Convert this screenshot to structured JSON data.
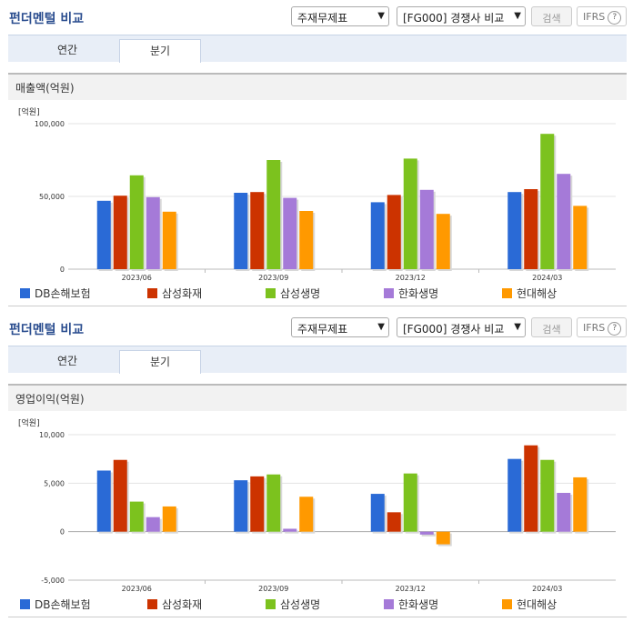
{
  "header": {
    "title": "펀더멘털 비교",
    "select_statement": "주재무제표",
    "select_compare": "[FG000] 경쟁사 비교",
    "search_label": "검색",
    "ifrs_label": "IFRS",
    "ifrs_help": "?"
  },
  "tabs": [
    {
      "label": "연간",
      "active": false
    },
    {
      "label": "분기",
      "active": true
    }
  ],
  "colors": {
    "DB손해보험": "#2a6ad6",
    "삼성화재": "#cc3300",
    "삼성생명": "#7cc21e",
    "한화생명": "#a57ad8",
    "현대해상": "#ff9900"
  },
  "chart_data": [
    {
      "type": "bar",
      "title": "매출액(억원)",
      "unit": "[억원]",
      "categories": [
        "2023/06",
        "2023/09",
        "2023/12",
        "2024/03"
      ],
      "ylim": [
        0,
        100000
      ],
      "yticks": [
        "100,000",
        "50,000",
        "0"
      ],
      "ytick_values": [
        100000,
        50000,
        0
      ],
      "series": [
        {
          "name": "DB손해보험",
          "values": [
            47000,
            52500,
            46000,
            53000
          ]
        },
        {
          "name": "삼성화재",
          "values": [
            50500,
            53000,
            51000,
            55000
          ]
        },
        {
          "name": "삼성생명",
          "values": [
            64500,
            75000,
            76000,
            93000
          ]
        },
        {
          "name": "한화생명",
          "values": [
            49500,
            49000,
            54500,
            65500
          ]
        },
        {
          "name": "현대해상",
          "values": [
            39500,
            40000,
            38000,
            43500
          ]
        }
      ]
    },
    {
      "type": "bar",
      "title": "영업이익(억원)",
      "unit": "[억원]",
      "categories": [
        "2023/06",
        "2023/09",
        "2023/12",
        "2024/03"
      ],
      "ylim": [
        -5000,
        10000
      ],
      "yticks": [
        "10,000",
        "5,000",
        "0",
        "-5,000"
      ],
      "ytick_values": [
        10000,
        5000,
        0,
        -5000
      ],
      "series": [
        {
          "name": "DB손해보험",
          "values": [
            6300,
            5300,
            3900,
            7500
          ]
        },
        {
          "name": "삼성화재",
          "values": [
            7400,
            5700,
            2000,
            8900
          ]
        },
        {
          "name": "삼성생명",
          "values": [
            3100,
            5900,
            6000,
            7400
          ]
        },
        {
          "name": "한화생명",
          "values": [
            1500,
            300,
            -300,
            4000
          ]
        },
        {
          "name": "현대해상",
          "values": [
            2600,
            3600,
            -1300,
            5600
          ]
        }
      ]
    }
  ]
}
